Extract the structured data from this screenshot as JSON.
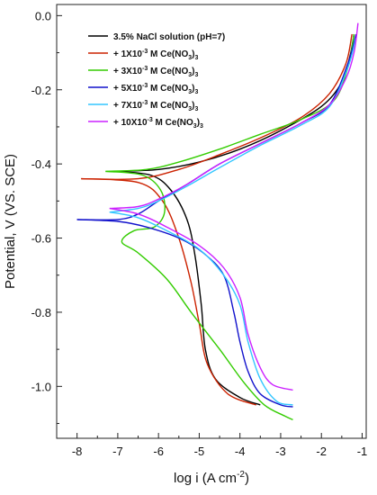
{
  "chart_data": {
    "type": "line",
    "xlabel": "log i (A cm",
    "xlabel_sup": "-2",
    "xlabel_tail": ")",
    "ylabel": "Potential, V (VS. SCE)",
    "xlim": [
      -8.5,
      -0.9
    ],
    "ylim": [
      -1.14,
      0.03
    ],
    "xticks": [
      -8,
      -7,
      -6,
      -5,
      -4,
      -3,
      -2,
      -1
    ],
    "xtick_labels": [
      "-8",
      "-7",
      "-6",
      "-5",
      "-4",
      "-3",
      "-2",
      "-1"
    ],
    "yticks": [
      0.0,
      -0.2,
      -0.4,
      -0.6,
      -0.8,
      -1.0
    ],
    "ytick_labels": [
      "0.0",
      "-0.2",
      "-0.4",
      "-0.6",
      "-0.8",
      "-1.0"
    ],
    "legend_position": "top-left",
    "series": [
      {
        "name": "3.5% NaCl solution (pH=7)",
        "legend": [
          {
            "t": "3.5%  NaCl solution (pH=7)"
          }
        ],
        "color": "#000000",
        "anodic": [
          [
            -7.1,
            -0.42
          ],
          [
            -6.0,
            -0.415
          ],
          [
            -5.0,
            -0.395
          ],
          [
            -4.0,
            -0.36
          ],
          [
            -3.0,
            -0.31
          ],
          [
            -2.0,
            -0.245
          ],
          [
            -1.5,
            -0.18
          ],
          [
            -1.3,
            -0.11
          ],
          [
            -1.2,
            -0.05
          ]
        ],
        "cathodic": [
          [
            -7.1,
            -0.42
          ],
          [
            -6.2,
            -0.43
          ],
          [
            -5.7,
            -0.47
          ],
          [
            -5.3,
            -0.55
          ],
          [
            -5.1,
            -0.65
          ],
          [
            -4.95,
            -0.78
          ],
          [
            -4.85,
            -0.9
          ],
          [
            -4.6,
            -0.98
          ],
          [
            -4.0,
            -1.03
          ],
          [
            -3.5,
            -1.05
          ]
        ]
      },
      {
        "name": "+ 1X10-3 M Ce(NO3)3",
        "legend": [
          {
            "t": "+ 1X10"
          },
          {
            "t": "-3",
            "s": "sup"
          },
          {
            "t": " M Ce(NO"
          },
          {
            "t": "3",
            "s": "sub"
          },
          {
            "t": ")"
          },
          {
            "t": "3",
            "s": "sub"
          }
        ],
        "color": "#cc2200",
        "anodic": [
          [
            -7.9,
            -0.44
          ],
          [
            -6.5,
            -0.44
          ],
          [
            -5.5,
            -0.415
          ],
          [
            -4.5,
            -0.375
          ],
          [
            -3.5,
            -0.33
          ],
          [
            -2.5,
            -0.275
          ],
          [
            -1.8,
            -0.21
          ],
          [
            -1.4,
            -0.13
          ],
          [
            -1.25,
            -0.05
          ]
        ],
        "cathodic": [
          [
            -7.9,
            -0.44
          ],
          [
            -6.5,
            -0.45
          ],
          [
            -5.9,
            -0.5
          ],
          [
            -5.5,
            -0.6
          ],
          [
            -5.2,
            -0.72
          ],
          [
            -5.0,
            -0.83
          ],
          [
            -4.8,
            -0.94
          ],
          [
            -4.3,
            -1.02
          ],
          [
            -3.6,
            -1.05
          ]
        ]
      },
      {
        "name": "+ 3X10-3 M Ce(NO3)3",
        "legend": [
          {
            "t": "+ 3X10"
          },
          {
            "t": "-3",
            "s": "sup"
          },
          {
            "t": " M Ce(NO"
          },
          {
            "t": "3",
            "s": "sub"
          },
          {
            "t": ")"
          },
          {
            "t": "3",
            "s": "sub"
          }
        ],
        "color": "#33cc00",
        "anodic": [
          [
            -7.3,
            -0.42
          ],
          [
            -6.3,
            -0.415
          ],
          [
            -5.5,
            -0.395
          ],
          [
            -4.5,
            -0.36
          ],
          [
            -3.5,
            -0.32
          ],
          [
            -2.5,
            -0.28
          ],
          [
            -1.7,
            -0.23
          ],
          [
            -1.35,
            -0.14
          ],
          [
            -1.2,
            -0.05
          ]
        ],
        "cathodic": [
          [
            -7.3,
            -0.42
          ],
          [
            -6.4,
            -0.43
          ],
          [
            -5.95,
            -0.47
          ],
          [
            -5.85,
            -0.53
          ],
          [
            -6.1,
            -0.57
          ],
          [
            -6.6,
            -0.58
          ],
          [
            -6.9,
            -0.61
          ],
          [
            -6.5,
            -0.64
          ],
          [
            -5.8,
            -0.71
          ],
          [
            -5.2,
            -0.8
          ],
          [
            -4.5,
            -0.9
          ],
          [
            -3.9,
            -0.99
          ],
          [
            -3.4,
            -1.05
          ],
          [
            -2.9,
            -1.08
          ],
          [
            -2.7,
            -1.09
          ]
        ]
      },
      {
        "name": "+ 5X10-3 M Ce(NO3)3",
        "legend": [
          {
            "t": "+ 5X10"
          },
          {
            "t": "-3",
            "s": "sup"
          },
          {
            "t": " M Ce(NO"
          },
          {
            "t": "3",
            "s": "sub"
          },
          {
            "t": ")"
          },
          {
            "t": "3",
            "s": "sub"
          }
        ],
        "color": "#1111cc",
        "anodic": [
          [
            -8.0,
            -0.55
          ],
          [
            -7.0,
            -0.55
          ],
          [
            -6.5,
            -0.535
          ],
          [
            -6.0,
            -0.5
          ],
          [
            -5.3,
            -0.455
          ],
          [
            -4.5,
            -0.4
          ],
          [
            -3.5,
            -0.345
          ],
          [
            -2.5,
            -0.29
          ],
          [
            -1.8,
            -0.24
          ],
          [
            -1.35,
            -0.13
          ],
          [
            -1.15,
            -0.05
          ]
        ],
        "cathodic": [
          [
            -8.0,
            -0.55
          ],
          [
            -7.0,
            -0.555
          ],
          [
            -6.3,
            -0.57
          ],
          [
            -5.5,
            -0.6
          ],
          [
            -4.9,
            -0.64
          ],
          [
            -4.4,
            -0.7
          ],
          [
            -4.15,
            -0.8
          ],
          [
            -4.0,
            -0.88
          ],
          [
            -3.8,
            -0.96
          ],
          [
            -3.5,
            -1.02
          ],
          [
            -3.0,
            -1.05
          ],
          [
            -2.7,
            -1.055
          ]
        ]
      },
      {
        "name": "+ 7X10-3 M Ce(NO3)3",
        "legend": [
          {
            "t": "+ 7X10"
          },
          {
            "t": "-3",
            "s": "sup"
          },
          {
            "t": " M Ce(NO"
          },
          {
            "t": "3",
            "s": "sub"
          },
          {
            "t": ")"
          },
          {
            "t": "3",
            "s": "sub"
          }
        ],
        "color": "#33c6ff",
        "anodic": [
          [
            -7.2,
            -0.53
          ],
          [
            -6.5,
            -0.52
          ],
          [
            -6.0,
            -0.5
          ],
          [
            -5.3,
            -0.46
          ],
          [
            -4.5,
            -0.41
          ],
          [
            -3.5,
            -0.35
          ],
          [
            -2.5,
            -0.295
          ],
          [
            -1.8,
            -0.245
          ],
          [
            -1.35,
            -0.14
          ],
          [
            -1.15,
            -0.06
          ]
        ],
        "cathodic": [
          [
            -7.2,
            -0.53
          ],
          [
            -6.5,
            -0.545
          ],
          [
            -5.8,
            -0.58
          ],
          [
            -5.0,
            -0.63
          ],
          [
            -4.4,
            -0.7
          ],
          [
            -4.0,
            -0.78
          ],
          [
            -3.8,
            -0.88
          ],
          [
            -3.5,
            -0.98
          ],
          [
            -3.1,
            -1.04
          ],
          [
            -2.7,
            -1.05
          ]
        ]
      },
      {
        "name": "+ 10X10-3 M Ce(NO3)3",
        "legend": [
          {
            "t": "+ 10X10"
          },
          {
            "t": "-3",
            "s": "sup"
          },
          {
            "t": " M Ce(NO"
          },
          {
            "t": "3",
            "s": "sub"
          },
          {
            "t": ")"
          },
          {
            "t": "3",
            "s": "sub"
          }
        ],
        "color": "#cc22ff",
        "anodic": [
          [
            -7.2,
            -0.52
          ],
          [
            -6.5,
            -0.515
          ],
          [
            -6.0,
            -0.495
          ],
          [
            -5.3,
            -0.455
          ],
          [
            -4.5,
            -0.4
          ],
          [
            -3.5,
            -0.345
          ],
          [
            -2.5,
            -0.29
          ],
          [
            -1.8,
            -0.24
          ],
          [
            -1.4,
            -0.17
          ],
          [
            -1.2,
            -0.1
          ],
          [
            -1.1,
            -0.02
          ]
        ],
        "cathodic": [
          [
            -7.2,
            -0.52
          ],
          [
            -6.5,
            -0.535
          ],
          [
            -5.8,
            -0.57
          ],
          [
            -5.0,
            -0.62
          ],
          [
            -4.4,
            -0.68
          ],
          [
            -4.0,
            -0.76
          ],
          [
            -3.8,
            -0.86
          ],
          [
            -3.5,
            -0.95
          ],
          [
            -3.2,
            -0.995
          ],
          [
            -2.7,
            -1.01
          ]
        ]
      }
    ]
  }
}
